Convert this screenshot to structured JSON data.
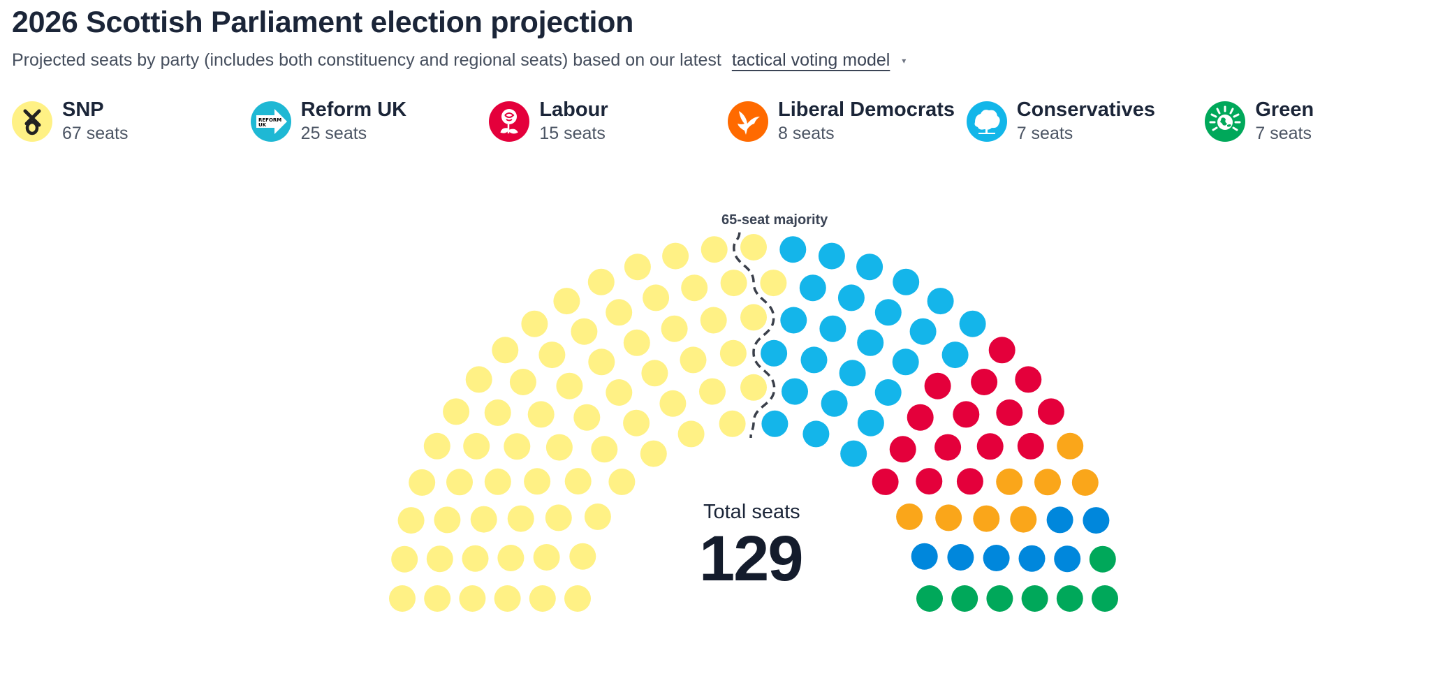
{
  "header": {
    "title": "2026 Scottish Parliament election projection",
    "subtitle_prefix": "Projected seats by party (includes both constituency and regional seats) based on our latest",
    "subtitle_link": "tactical voting model",
    "subtitle_caret": "▾"
  },
  "legend": [
    {
      "name": "SNP",
      "seats_label": "67 seats",
      "icon": "snp-logo-icon",
      "color": "#FFF185"
    },
    {
      "name": "Reform UK",
      "seats_label": "25 seats",
      "icon": "reform-uk-logo-icon",
      "color": "#1EB8D4"
    },
    {
      "name": "Labour",
      "seats_label": "15 seats",
      "icon": "labour-rose-icon",
      "color": "#E4003B"
    },
    {
      "name": "Liberal Democrats",
      "seats_label": "8 seats",
      "icon": "libdem-bird-icon",
      "color": "#FF6A00"
    },
    {
      "name": "Conservatives",
      "seats_label": "7 seats",
      "icon": "conservative-tree-icon",
      "color": "#12B6E9"
    },
    {
      "name": "Green",
      "seats_label": "7 seats",
      "icon": "green-globe-icon",
      "color": "#00A85A"
    }
  ],
  "chart": {
    "majority_label": "65-seat majority",
    "total_label": "Total seats",
    "total_value": "129"
  },
  "chart_data": {
    "type": "parliament",
    "title": "2026 Scottish Parliament election projection",
    "total": 129,
    "majority": 65,
    "rows": [
      14,
      17,
      20,
      23,
      26,
      29
    ],
    "series": [
      {
        "name": "SNP",
        "values": [
          67
        ],
        "seat_color": "#FFF185"
      },
      {
        "name": "Reform UK",
        "values": [
          25
        ],
        "seat_color": "#14B5EA"
      },
      {
        "name": "Labour",
        "values": [
          15
        ],
        "seat_color": "#E4003B"
      },
      {
        "name": "Liberal Democrats",
        "values": [
          8
        ],
        "seat_color": "#FAA61A"
      },
      {
        "name": "Conservatives",
        "values": [
          7
        ],
        "seat_color": "#0087DC"
      },
      {
        "name": "Green",
        "values": [
          7
        ],
        "seat_color": "#00A85A"
      }
    ],
    "categories": [
      "SNP",
      "Reform UK",
      "Labour",
      "Liberal Democrats",
      "Conservatives",
      "Green"
    ],
    "values": [
      67,
      25,
      15,
      8,
      7,
      7
    ]
  }
}
